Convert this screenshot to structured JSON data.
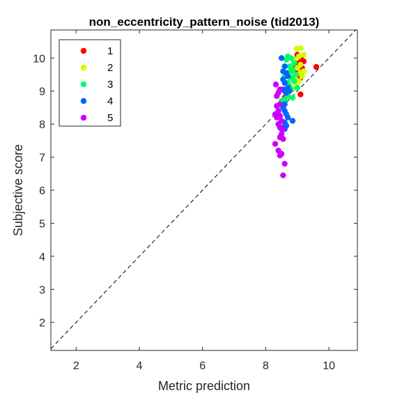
{
  "chart_data": {
    "type": "scatter",
    "title": "non_eccentricity_pattern_noise (tid2013)",
    "xlabel": "Metric prediction",
    "ylabel": "Subjective score",
    "xlim": [
      1.2,
      10.9
    ],
    "ylim": [
      1.15,
      10.85
    ],
    "xticks": [
      "2",
      "4",
      "6",
      "8",
      "10"
    ],
    "yticks": [
      "2",
      "3",
      "4",
      "5",
      "6",
      "7",
      "8",
      "9",
      "10"
    ],
    "xtick_values": [
      2,
      4,
      6,
      8,
      10
    ],
    "ytick_values": [
      2,
      3,
      4,
      5,
      6,
      7,
      8,
      9,
      10
    ],
    "grid": false,
    "legend_position": "top-left",
    "reference_line": "identity (dashed)",
    "series": [
      {
        "name": "1",
        "color": "#ff0000",
        "points": [
          [
            9.6,
            9.73
          ],
          [
            9.2,
            9.9
          ],
          [
            9.12,
            10.0
          ],
          [
            9.05,
            9.85
          ],
          [
            8.95,
            9.75
          ],
          [
            9.0,
            9.55
          ],
          [
            9.1,
            9.4
          ],
          [
            8.9,
            9.3
          ],
          [
            9.1,
            8.9
          ],
          [
            8.65,
            8.85
          ],
          [
            8.6,
            8.8
          ],
          [
            9.15,
            9.7
          ],
          [
            8.85,
            9.6
          ],
          [
            9.0,
            10.1
          ]
        ]
      },
      {
        "name": "2",
        "color": "#ccff00",
        "points": [
          [
            9.1,
            10.3
          ],
          [
            8.98,
            10.28
          ],
          [
            9.2,
            10.1
          ],
          [
            9.05,
            10.05
          ],
          [
            8.9,
            9.95
          ],
          [
            9.1,
            9.8
          ],
          [
            9.0,
            9.7
          ],
          [
            8.85,
            9.55
          ],
          [
            9.15,
            9.45
          ],
          [
            8.9,
            9.4
          ],
          [
            9.05,
            9.3
          ],
          [
            8.95,
            9.25
          ],
          [
            8.75,
            9.15
          ],
          [
            8.85,
            9.05
          ],
          [
            9.2,
            9.6
          ],
          [
            9.1,
            9.55
          ]
        ]
      },
      {
        "name": "3",
        "color": "#00ff66",
        "points": [
          [
            8.7,
            10.05
          ],
          [
            8.8,
            10.0
          ],
          [
            8.65,
            9.95
          ],
          [
            8.9,
            9.85
          ],
          [
            8.75,
            9.75
          ],
          [
            8.85,
            9.65
          ],
          [
            8.7,
            9.55
          ],
          [
            8.6,
            9.45
          ],
          [
            8.8,
            9.4
          ],
          [
            8.9,
            9.3
          ],
          [
            8.7,
            9.25
          ],
          [
            8.75,
            9.15
          ],
          [
            9.0,
            9.1
          ],
          [
            8.8,
            9.05
          ],
          [
            8.65,
            8.95
          ],
          [
            8.7,
            8.85
          ],
          [
            8.85,
            8.8
          ],
          [
            8.6,
            8.75
          ],
          [
            8.5,
            8.7
          ],
          [
            8.55,
            8.6
          ],
          [
            8.95,
            9.5
          ],
          [
            8.8,
            9.6
          ]
        ]
      },
      {
        "name": "4",
        "color": "#0066ff",
        "points": [
          [
            8.5,
            10.0
          ],
          [
            8.6,
            9.75
          ],
          [
            8.55,
            9.6
          ],
          [
            8.65,
            9.55
          ],
          [
            8.55,
            9.35
          ],
          [
            8.6,
            9.25
          ],
          [
            8.7,
            9.1
          ],
          [
            8.55,
            9.05
          ],
          [
            8.6,
            9.0
          ],
          [
            8.75,
            9.0
          ],
          [
            8.65,
            8.95
          ],
          [
            8.6,
            8.6
          ],
          [
            8.55,
            8.5
          ],
          [
            8.6,
            8.4
          ],
          [
            8.65,
            8.3
          ],
          [
            8.7,
            8.2
          ],
          [
            8.85,
            8.1
          ],
          [
            8.6,
            8.05
          ],
          [
            8.65,
            7.95
          ],
          [
            8.55,
            7.9
          ],
          [
            8.6,
            7.85
          ],
          [
            8.5,
            7.85
          ],
          [
            8.7,
            9.45
          ]
        ]
      },
      {
        "name": "5",
        "color": "#cc00ff",
        "points": [
          [
            8.32,
            9.2
          ],
          [
            8.45,
            9.05
          ],
          [
            8.4,
            8.95
          ],
          [
            8.35,
            8.85
          ],
          [
            8.45,
            8.6
          ],
          [
            8.35,
            8.55
          ],
          [
            8.4,
            8.4
          ],
          [
            8.3,
            8.3
          ],
          [
            8.45,
            8.25
          ],
          [
            8.35,
            8.2
          ],
          [
            8.5,
            8.1
          ],
          [
            8.4,
            8.0
          ],
          [
            8.45,
            7.9
          ],
          [
            8.55,
            7.85
          ],
          [
            8.5,
            7.7
          ],
          [
            8.45,
            7.6
          ],
          [
            8.55,
            7.55
          ],
          [
            8.3,
            7.4
          ],
          [
            8.4,
            7.2
          ],
          [
            8.5,
            7.1
          ],
          [
            8.45,
            7.05
          ],
          [
            8.6,
            6.8
          ],
          [
            8.55,
            6.45
          ]
        ]
      }
    ]
  }
}
